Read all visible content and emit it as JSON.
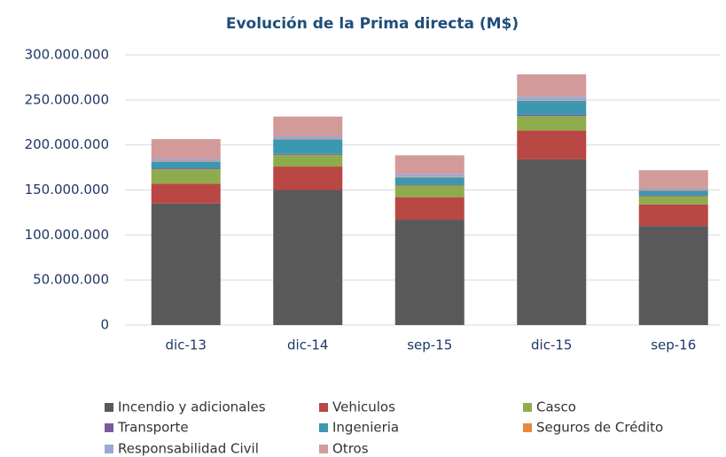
{
  "chart_data": {
    "type": "stacked_bar",
    "title": "Evolución de la Prima directa (M$)",
    "categories": [
      "dic-13",
      "dic-14",
      "sep-15",
      "dic-15",
      "sep-16"
    ],
    "series": [
      {
        "name": "Incendio y adicionales",
        "color": "#595959",
        "values": [
          135000000,
          150000000,
          117000000,
          184000000,
          110000000
        ]
      },
      {
        "name": "Vehiculos",
        "color": "#b94743",
        "values": [
          22000000,
          26000000,
          25000000,
          32000000,
          24000000
        ]
      },
      {
        "name": "Casco",
        "color": "#8fac4c",
        "values": [
          16000000,
          13000000,
          13000000,
          16000000,
          9000000
        ]
      },
      {
        "name": "Transporte",
        "color": "#7b5a9c",
        "values": [
          1000000,
          1000000,
          1000000,
          1500000,
          1000000
        ]
      },
      {
        "name": "Ingenieria",
        "color": "#3c97b0",
        "values": [
          7000000,
          16000000,
          8000000,
          15500000,
          5000000
        ]
      },
      {
        "name": "Seguros de Crédito",
        "color": "#e9893a",
        "values": [
          500000,
          500000,
          500000,
          500000,
          500000
        ]
      },
      {
        "name": "Responsabilidad Civil",
        "color": "#97a9d3",
        "values": [
          3000000,
          3000000,
          3000000,
          4000000,
          2000000
        ]
      },
      {
        "name": "Otros",
        "color": "#d39a9a",
        "values": [
          22000000,
          22000000,
          21000000,
          25000000,
          20500000
        ]
      }
    ],
    "ylim": [
      0,
      300000000
    ],
    "yticks": [
      0,
      {
        "value": 50000000,
        "label": "50.000.000"
      },
      {
        "value": 100000000,
        "label": "100.000.000"
      },
      {
        "value": 150000000,
        "label": "150.000.000"
      },
      {
        "value": 200000000,
        "label": "200.000.000"
      },
      {
        "value": 250000000,
        "label": "250.000.000"
      },
      {
        "value": 300000000,
        "label": "300.000.000"
      }
    ],
    "grid": true,
    "legend": "bottom"
  }
}
